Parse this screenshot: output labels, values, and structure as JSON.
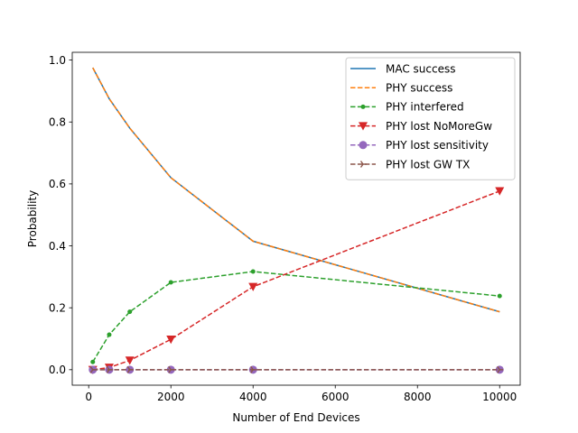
{
  "chart_data": {
    "type": "line",
    "title": "",
    "xlabel": "Number of End Devices",
    "ylabel": "Probability",
    "xlim": [
      -400,
      10500
    ],
    "ylim": [
      -0.05,
      1.025
    ],
    "x_ticks": [
      0,
      2000,
      4000,
      6000,
      8000,
      10000
    ],
    "x_tick_labels": [
      "0",
      "2000",
      "4000",
      "6000",
      "8000",
      "10000"
    ],
    "y_ticks": [
      0.0,
      0.2,
      0.4,
      0.6,
      0.8,
      1.0
    ],
    "y_tick_labels": [
      "0.0",
      "0.2",
      "0.4",
      "0.6",
      "0.8",
      "1.0"
    ],
    "grid": false,
    "legend_position": "top-right",
    "x": [
      100,
      500,
      1000,
      2000,
      4000,
      10000
    ],
    "series": [
      {
        "name": "MAC success",
        "color": "#1f77b4",
        "dash": "solid",
        "marker": "none",
        "values": [
          0.975,
          0.875,
          0.78,
          0.62,
          0.415,
          0.187
        ]
      },
      {
        "name": "PHY success",
        "color": "#ff7f0e",
        "dash": "dashed",
        "marker": "none",
        "values": [
          0.975,
          0.875,
          0.78,
          0.62,
          0.415,
          0.187
        ]
      },
      {
        "name": "PHY interfered",
        "color": "#2ca02c",
        "dash": "dashed",
        "marker": "dot",
        "values": [
          0.025,
          0.113,
          0.187,
          0.282,
          0.317,
          0.238
        ]
      },
      {
        "name": "PHY lost NoMoreGw",
        "color": "#d62728",
        "dash": "dashed",
        "marker": "triangle-down",
        "values": [
          0.0,
          0.007,
          0.03,
          0.098,
          0.268,
          0.577
        ]
      },
      {
        "name": "PHY lost sensitivity",
        "color": "#9467bd",
        "dash": "dashed",
        "marker": "circle",
        "values": [
          0.0,
          0.0,
          0.0,
          0.0,
          0.0,
          0.0
        ]
      },
      {
        "name": "PHY lost GW TX",
        "color": "#8c564b",
        "dash": "dashed",
        "marker": "tri-right",
        "values": [
          0.0,
          0.0,
          0.0,
          0.0,
          0.0,
          0.0
        ]
      }
    ]
  }
}
